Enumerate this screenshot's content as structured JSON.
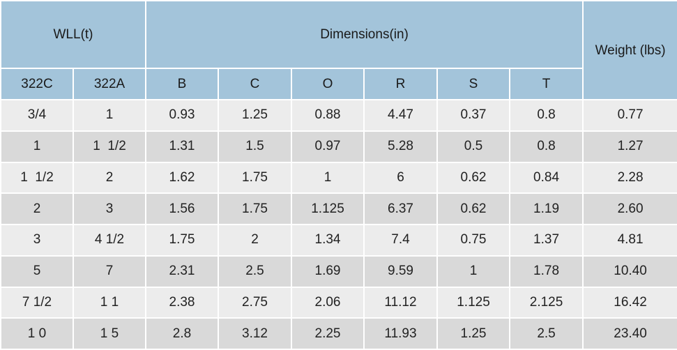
{
  "table": {
    "group_headers": {
      "wll": "WLL(t)",
      "dimensions": "Dimensions(in)",
      "weight": "Weight (lbs)"
    },
    "sub_headers": [
      "322C",
      "322A",
      "B",
      "C",
      "O",
      "R",
      "S",
      "T"
    ],
    "rows": [
      [
        "3/4",
        "1",
        "0.93",
        "1.25",
        "0.88",
        "4.47",
        "0.37",
        "0.8",
        "0.77"
      ],
      [
        "1",
        "1  1/2",
        "1.31",
        "1.5",
        "0.97",
        "5.28",
        "0.5",
        "0.8",
        "1.27"
      ],
      [
        "1  1/2",
        "2",
        "1.62",
        "1.75",
        "1",
        "6",
        "0.62",
        "0.84",
        "2.28"
      ],
      [
        "2",
        "3",
        "1.56",
        "1.75",
        "1.125",
        "6.37",
        "0.62",
        "1.19",
        "2.60"
      ],
      [
        "3",
        "4 1/2",
        "1.75",
        "2",
        "1.34",
        "7.4",
        "0.75",
        "1.37",
        "4.81"
      ],
      [
        "5",
        "7",
        "2.31",
        "2.5",
        "1.69",
        "9.59",
        "1",
        "1.78",
        "10.40"
      ],
      [
        "7 1/2",
        "1 1",
        "2.38",
        "2.75",
        "2.06",
        "11.12",
        "1.125",
        "2.125",
        "16.42"
      ],
      [
        "1 0",
        "1 5",
        "2.8",
        "3.12",
        "2.25",
        "11.93",
        "1.25",
        "2.5",
        "23.40"
      ]
    ]
  },
  "colors": {
    "header_bg": "#a3c4da",
    "row_light": "#ececec",
    "row_dark": "#d9d9d9",
    "grid_lines": "#ffffff"
  }
}
